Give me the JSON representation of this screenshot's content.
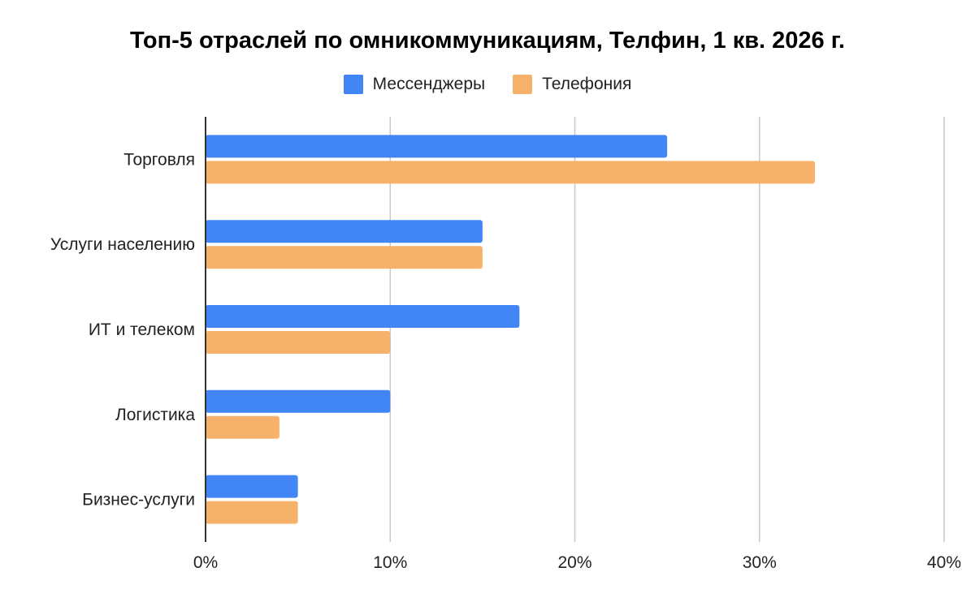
{
  "chart_data": {
    "type": "bar",
    "orientation": "horizontal",
    "title": "Топ-5 отраслей по омникоммуникациям, Телфин, 1 кв. 2026 г.",
    "categories": [
      "Торговля",
      "Услуги населению",
      "ИТ и телеком",
      "Логистика",
      "Бизнес-услуги"
    ],
    "series": [
      {
        "name": "Мессенджеры",
        "color": "#4285F4",
        "values": [
          25,
          15,
          17,
          10,
          5
        ]
      },
      {
        "name": "Телефония",
        "color": "#F6B26B",
        "values": [
          33,
          15,
          10,
          4,
          5
        ]
      }
    ],
    "xlim": [
      0,
      40
    ],
    "xticks": [
      "0%",
      "10%",
      "20%",
      "30%",
      "40%"
    ],
    "grid": true,
    "legend_position": "top-center"
  }
}
